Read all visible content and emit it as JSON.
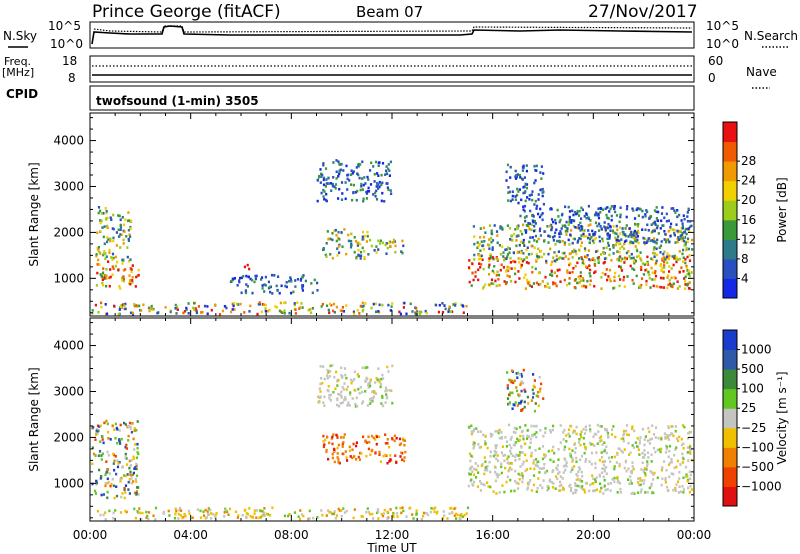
{
  "header": {
    "station": "Prince George (fitACF)",
    "beam": "Beam 07",
    "date": "27/Nov/2017"
  },
  "top_panels": {
    "nsky_label": "N.Sky",
    "nsky_ticks": [
      "10^5",
      "10^0"
    ],
    "nsearch_label": "N.Search",
    "freq_label_1": "Freq.",
    "freq_label_2": "[MHz]",
    "freq_ticks": [
      "18",
      "8"
    ],
    "nave_label": "Nave",
    "nave_ticks": [
      "60",
      "0"
    ],
    "cpid_label": "CPID",
    "cpid_text": "twofsound (1-min) 3505"
  },
  "chart_data": [
    {
      "type": "heatmap",
      "panel": "power",
      "ylabel": "Slant Range [km]",
      "xlabel": "Time UT",
      "x_ticks": [
        "00:00",
        "04:00",
        "08:00",
        "12:00",
        "16:00",
        "20:00",
        "00:00"
      ],
      "y_ticks": [
        1000,
        2000,
        3000,
        4000
      ],
      "xlim": [
        0,
        24
      ],
      "ylim": [
        180,
        4600
      ],
      "colorbar": {
        "label": "Power [dB]",
        "ticks": [
          "4",
          "8",
          "12",
          "16",
          "20",
          "24",
          "28"
        ],
        "colors": [
          "#1428e6",
          "#2a4fbe",
          "#2e7a8a",
          "#3a9a3a",
          "#9ccc1c",
          "#f0d000",
          "#f09a00",
          "#f05a00",
          "#e81010"
        ]
      },
      "scatter_regions": [
        {
          "t": [
            0.0,
            1.9
          ],
          "r": [
            800,
            1400
          ],
          "level": "high"
        },
        {
          "t": [
            0.2,
            1.6
          ],
          "r": [
            1400,
            2500
          ],
          "level": "mid"
        },
        {
          "t": [
            0.3,
            0.7
          ],
          "r": [
            2000,
            2600
          ],
          "level": "mid"
        },
        {
          "t": [
            6.0,
            6.3
          ],
          "r": [
            1200,
            1400
          ],
          "level": "high"
        },
        {
          "t": [
            9.2,
            11.0
          ],
          "r": [
            1450,
            2100
          ],
          "level": "mid"
        },
        {
          "t": [
            11.0,
            12.5
          ],
          "r": [
            1550,
            1900
          ],
          "level": "mid"
        },
        {
          "t": [
            9.0,
            12.0
          ],
          "r": [
            2700,
            3600
          ],
          "level": "low"
        },
        {
          "t": [
            5.5,
            9.0
          ],
          "r": [
            700,
            1100
          ],
          "level": "low"
        },
        {
          "t": [
            0.0,
            15.0
          ],
          "r": [
            200,
            500
          ],
          "level": "mixed"
        },
        {
          "t": [
            15.0,
            24.0
          ],
          "r": [
            800,
            1500
          ],
          "level": "high"
        },
        {
          "t": [
            15.2,
            24.0
          ],
          "r": [
            1400,
            2200
          ],
          "level": "mid"
        },
        {
          "t": [
            17.0,
            24.0
          ],
          "r": [
            1800,
            2600
          ],
          "level": "low"
        },
        {
          "t": [
            16.5,
            18.0
          ],
          "r": [
            2600,
            3500
          ],
          "level": "low"
        }
      ]
    },
    {
      "type": "heatmap",
      "panel": "velocity",
      "ylabel": "Slant Range [km]",
      "xlabel": "Time UT",
      "x_ticks": [
        "00:00",
        "04:00",
        "08:00",
        "12:00",
        "16:00",
        "20:00",
        "00:00"
      ],
      "y_ticks": [
        1000,
        2000,
        3000,
        4000
      ],
      "xlim": [
        0,
        24
      ],
      "ylim": [
        180,
        4600
      ],
      "colorbar": {
        "label": "Velocity [m s⁻¹]",
        "ticks": [
          "1000",
          "500",
          "100",
          "25",
          "−25",
          "−100",
          "−500",
          "−1000"
        ],
        "colors": [
          "#1a3ccc",
          "#2e5aa8",
          "#3a8a3a",
          "#60c820",
          "#c4c4c0",
          "#f0c000",
          "#f08000",
          "#f04000",
          "#e01010"
        ]
      },
      "scatter_regions": [
        {
          "t": [
            0.0,
            1.9
          ],
          "r": [
            700,
            2400
          ],
          "level": "mixed-v"
        },
        {
          "t": [
            9.2,
            12.5
          ],
          "r": [
            1450,
            2100
          ],
          "level": "neg"
        },
        {
          "t": [
            9.0,
            12.0
          ],
          "r": [
            2700,
            3600
          ],
          "level": "gray"
        },
        {
          "t": [
            0.0,
            15.0
          ],
          "r": [
            200,
            500
          ],
          "level": "neg-low"
        },
        {
          "t": [
            15.0,
            24.0
          ],
          "r": [
            800,
            2300
          ],
          "level": "gray"
        },
        {
          "t": [
            16.5,
            18.0
          ],
          "r": [
            2600,
            3500
          ],
          "level": "mixed-v"
        }
      ]
    }
  ]
}
